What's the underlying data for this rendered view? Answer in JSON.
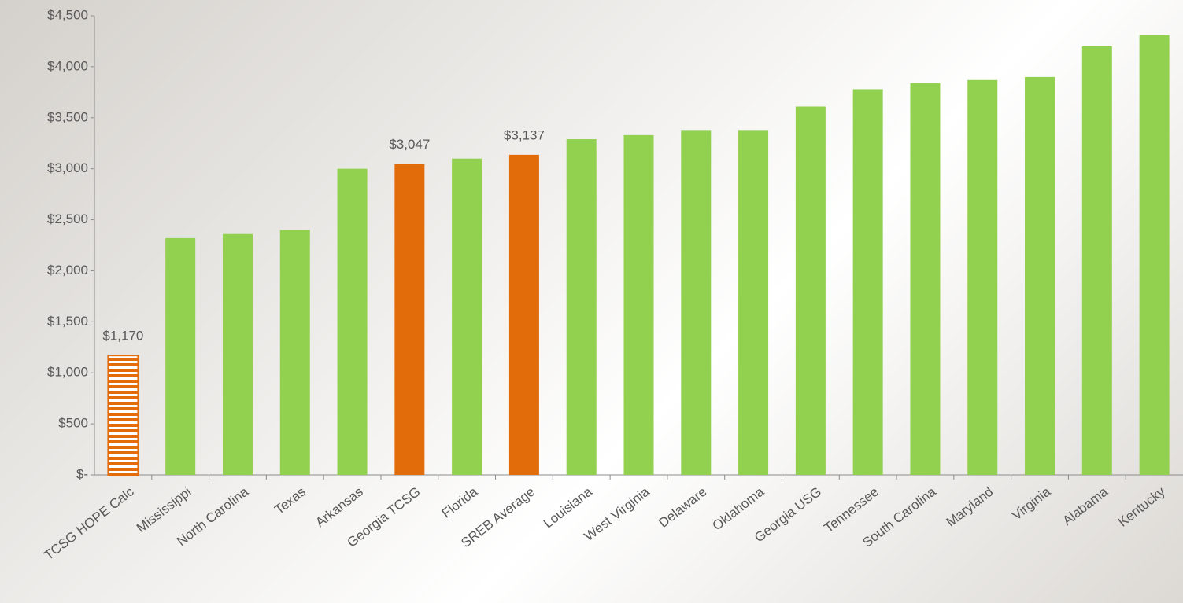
{
  "chart_data": {
    "type": "bar",
    "categories": [
      "TCSG HOPE Calc",
      "Mississippi",
      "North Carolina",
      "Texas",
      "Arkansas",
      "Georgia TCSG",
      "Florida",
      "SREB Average",
      "Louisiana",
      "West Virginia",
      "Delaware",
      "Oklahoma",
      "Georgia USG",
      "Tennessee",
      "South Carolina",
      "Maryland",
      "Virginia",
      "Alabama",
      "Kentucky"
    ],
    "values": [
      1170,
      2320,
      2360,
      2400,
      3000,
      3047,
      3100,
      3137,
      3290,
      3330,
      3380,
      3380,
      3610,
      3780,
      3840,
      3870,
      3900,
      4200,
      4310
    ],
    "value_labels": [
      "$1,170",
      null,
      null,
      null,
      null,
      "$3,047",
      null,
      "$3,137",
      null,
      null,
      null,
      null,
      null,
      null,
      null,
      null,
      null,
      null,
      null
    ],
    "colors": [
      "#e36c0a",
      "#92d050",
      "#92d050",
      "#92d050",
      "#92d050",
      "#e36c0a",
      "#92d050",
      "#e36c0a",
      "#92d050",
      "#92d050",
      "#92d050",
      "#92d050",
      "#92d050",
      "#92d050",
      "#92d050",
      "#92d050",
      "#92d050",
      "#92d050",
      "#92d050"
    ],
    "striped": [
      true,
      false,
      false,
      false,
      false,
      false,
      false,
      false,
      false,
      false,
      false,
      false,
      false,
      false,
      false,
      false,
      false,
      false,
      false
    ],
    "ylim": [
      0,
      4500
    ],
    "yticks": [
      {
        "value": 0,
        "label": "$-"
      },
      {
        "value": 500,
        "label": "$500"
      },
      {
        "value": 1000,
        "label": "$1,000"
      },
      {
        "value": 1500,
        "label": "$1,500"
      },
      {
        "value": 2000,
        "label": "$2,000"
      },
      {
        "value": 2500,
        "label": "$2,500"
      },
      {
        "value": 3000,
        "label": "$3,000"
      },
      {
        "value": 3500,
        "label": "$3,500"
      },
      {
        "value": 4000,
        "label": "$4,000"
      },
      {
        "value": 4500,
        "label": "$4,500"
      }
    ],
    "grid": false
  }
}
